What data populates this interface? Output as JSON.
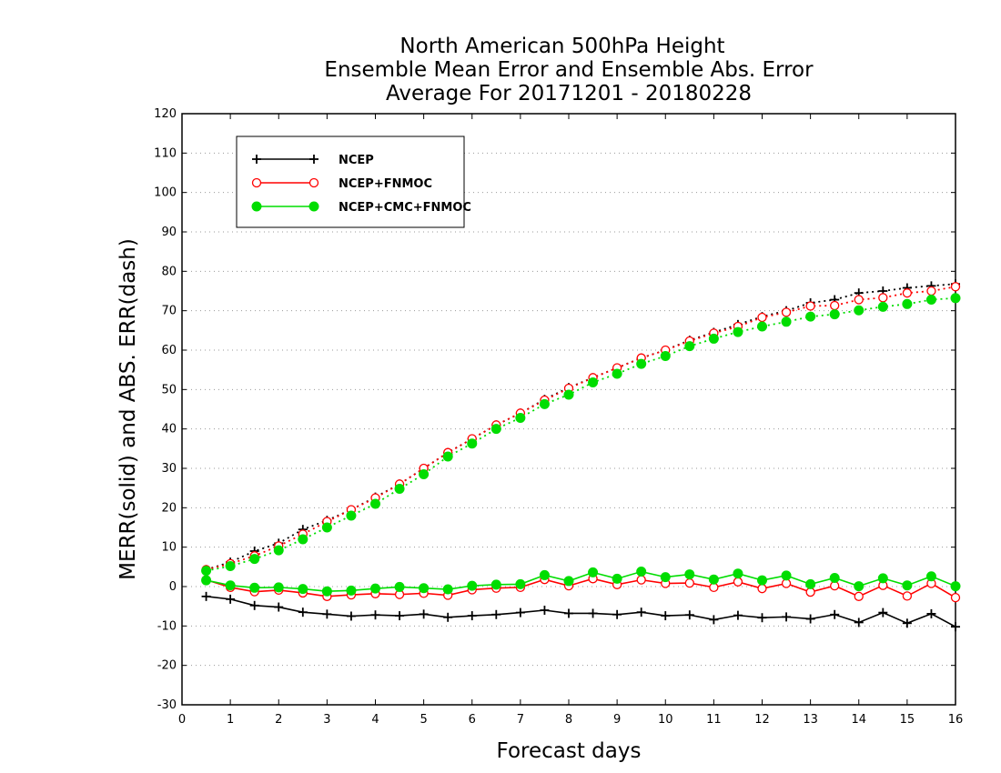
{
  "chart_data": {
    "type": "line",
    "title": [
      "North American 500hPa Height",
      "Ensemble Mean Error and Ensemble Abs. Error",
      "Average For 20171201 - 20180228"
    ],
    "xlabel": "Forecast days",
    "ylabel": "MERR(solid) and ABS. ERR(dash)",
    "xlim": [
      0,
      16
    ],
    "ylim": [
      -30,
      120
    ],
    "xticks": [
      0,
      1,
      2,
      3,
      4,
      5,
      6,
      7,
      8,
      9,
      10,
      11,
      12,
      13,
      14,
      15,
      16
    ],
    "yticks": [
      -30,
      -20,
      -10,
      0,
      10,
      20,
      30,
      40,
      50,
      60,
      70,
      80,
      90,
      100,
      110,
      120
    ],
    "grid": "horizontal dotted",
    "legend_position": "top-left",
    "x": [
      0.5,
      1,
      1.5,
      2,
      2.5,
      3,
      3.5,
      4,
      4.5,
      5,
      5.5,
      6,
      6.5,
      7,
      7.5,
      8,
      8.5,
      9,
      9.5,
      10,
      10.5,
      11,
      11.5,
      12,
      12.5,
      13,
      13.5,
      14,
      14.5,
      15,
      15.5,
      16
    ],
    "series": [
      {
        "name": "NCEP",
        "color": "#000000",
        "marker": "plus",
        "mean_error": [
          -2.5,
          -3.2,
          -4.8,
          -5.2,
          -6.5,
          -7.0,
          -7.5,
          -7.2,
          -7.4,
          -7.0,
          -7.8,
          -7.4,
          -7.1,
          -6.6,
          -6.0,
          -6.8,
          -6.8,
          -7.1,
          -6.5,
          -7.4,
          -7.2,
          -8.4,
          -7.3,
          -7.9,
          -7.7,
          -8.2,
          -7.1,
          -9.1,
          -6.6,
          -9.3,
          -6.9,
          -10.2
        ],
        "abs_error": [
          4.3,
          6.2,
          9.0,
          11.0,
          14.5,
          16.8,
          19.5,
          22.7,
          26.0,
          30.0,
          34.0,
          37.5,
          41.0,
          44.0,
          47.5,
          50.5,
          53.0,
          55.5,
          58.0,
          60.0,
          62.5,
          64.5,
          66.5,
          68.5,
          70.0,
          72.0,
          72.8,
          74.5,
          75.0,
          75.8,
          76.3,
          76.8
        ]
      },
      {
        "name": "NCEP+FNMOC",
        "color": "#ff0000",
        "marker": "open-circle",
        "mean_error": [
          1.7,
          -0.2,
          -1.3,
          -0.9,
          -1.6,
          -2.5,
          -2.1,
          -1.8,
          -2.0,
          -1.7,
          -2.2,
          -0.8,
          -0.4,
          -0.2,
          1.8,
          0.2,
          2.0,
          0.5,
          1.7,
          0.8,
          0.9,
          -0.2,
          1.2,
          -0.5,
          0.8,
          -1.4,
          0.2,
          -2.5,
          0.3,
          -2.4,
          0.8,
          -2.8
        ],
        "abs_error": [
          4.3,
          5.8,
          7.8,
          10.3,
          13.3,
          16.5,
          19.5,
          22.5,
          26.0,
          30.0,
          34.0,
          37.5,
          41.0,
          44.0,
          47.3,
          50.3,
          53.0,
          55.5,
          58.0,
          60.0,
          62.3,
          64.3,
          66.0,
          68.3,
          69.6,
          71.2,
          71.3,
          72.8,
          73.3,
          74.5,
          75.0,
          76.1
        ]
      },
      {
        "name": "NCEP+CMC+FNMOC",
        "color": "#00dd00",
        "marker": "filled-circle",
        "mean_error": [
          1.6,
          0.3,
          -0.3,
          -0.2,
          -0.6,
          -1.2,
          -1.0,
          -0.5,
          -0.1,
          -0.4,
          -0.7,
          0.2,
          0.5,
          0.6,
          2.9,
          1.4,
          3.6,
          2.0,
          3.8,
          2.4,
          3.1,
          1.8,
          3.3,
          1.6,
          2.8,
          0.6,
          2.2,
          0.1,
          2.1,
          0.3,
          2.6,
          0.1
        ],
        "abs_error": [
          4.0,
          5.2,
          7.0,
          9.2,
          12.0,
          15.0,
          18.0,
          21.0,
          24.8,
          28.5,
          33.0,
          36.3,
          40.0,
          42.8,
          46.3,
          48.7,
          51.8,
          54.0,
          56.5,
          58.5,
          61.0,
          62.9,
          64.6,
          66.0,
          67.2,
          68.5,
          69.1,
          70.1,
          71.0,
          71.7,
          72.8,
          73.2
        ]
      }
    ]
  }
}
